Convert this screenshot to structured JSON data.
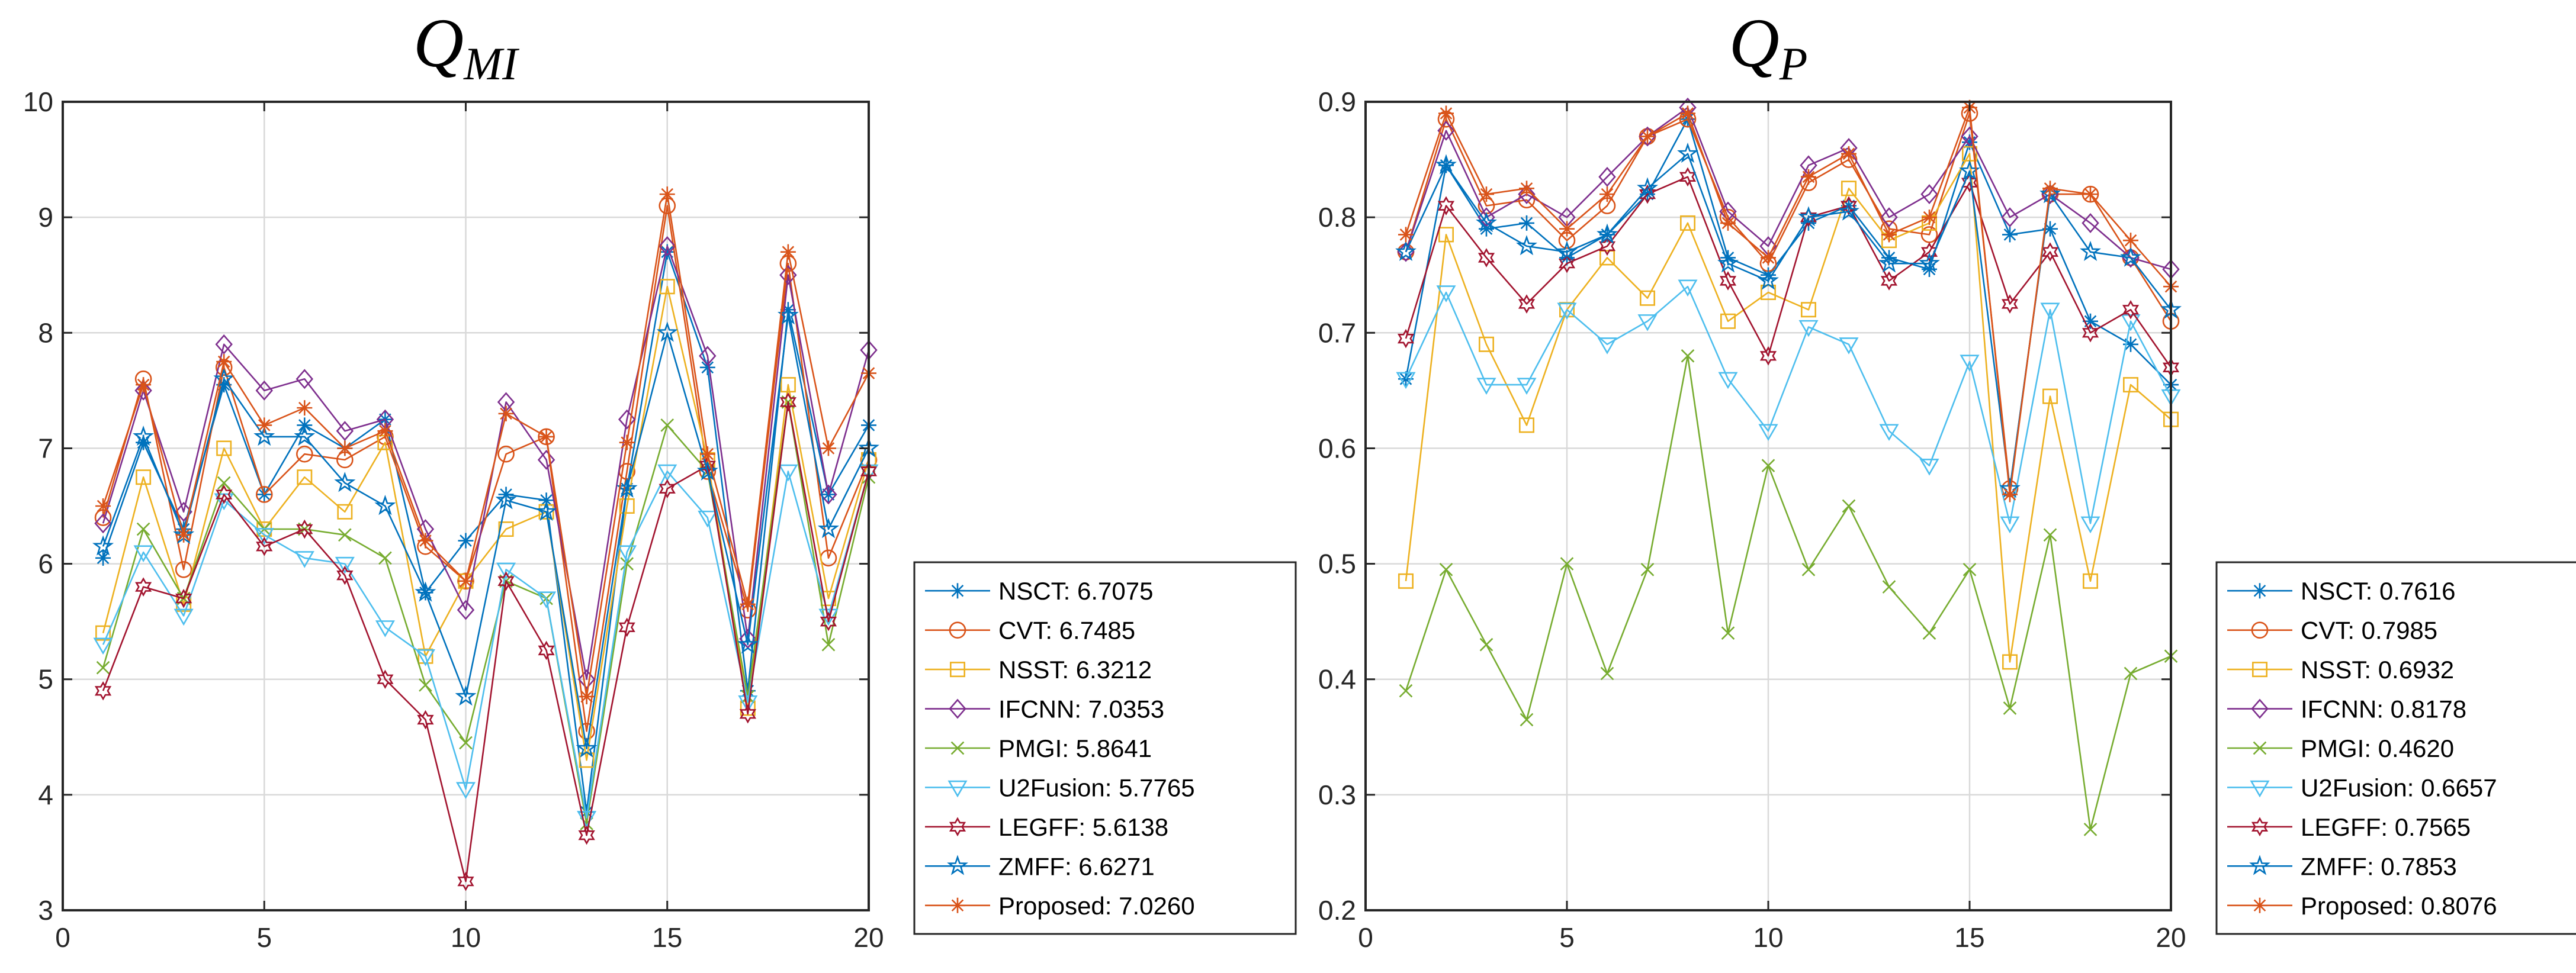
{
  "chart_data": [
    {
      "type": "line",
      "title": "Q",
      "title_subscript": "MI",
      "xlabel": "",
      "ylabel": "",
      "xlim": [
        0,
        20
      ],
      "ylim": [
        3,
        10
      ],
      "xticks": [
        0,
        5,
        10,
        15,
        20
      ],
      "yticks": [
        3,
        4,
        5,
        6,
        7,
        8,
        9,
        10
      ],
      "grid": true,
      "legend_position": "outside-right-bottom",
      "x": [
        1,
        2,
        3,
        4,
        5,
        6,
        7,
        8,
        9,
        10,
        11,
        12,
        13,
        14,
        15,
        16,
        17,
        18,
        19,
        20
      ],
      "series": [
        {
          "name": "NSCT",
          "legend": "NSCT: 6.7075",
          "color": "#0072BD",
          "marker": "asterisk",
          "values": [
            6.05,
            7.05,
            6.3,
            7.55,
            6.6,
            7.2,
            7.0,
            7.25,
            5.75,
            6.2,
            6.6,
            6.55,
            3.85,
            6.65,
            8.7,
            7.7,
            4.9,
            8.2,
            6.6,
            7.2
          ]
        },
        {
          "name": "CVT",
          "legend": "CVT: 6.7485",
          "color": "#D95319",
          "marker": "circle",
          "values": [
            6.4,
            7.6,
            5.95,
            7.7,
            6.6,
            6.95,
            6.9,
            7.1,
            6.15,
            5.85,
            6.95,
            7.1,
            4.55,
            6.8,
            9.1,
            6.8,
            5.6,
            8.6,
            6.05,
            6.9
          ]
        },
        {
          "name": "NSST",
          "legend": "NSST: 6.3212",
          "color": "#EDB120",
          "marker": "square",
          "values": [
            5.4,
            6.75,
            5.65,
            7.0,
            6.3,
            6.75,
            6.45,
            7.05,
            5.2,
            5.85,
            6.3,
            6.45,
            4.3,
            6.5,
            8.4,
            6.9,
            4.75,
            7.55,
            5.7,
            6.9
          ]
        },
        {
          "name": "IFCNN",
          "legend": "IFCNN: 7.0353",
          "color": "#7E2F8E",
          "marker": "diamond",
          "values": [
            6.35,
            7.5,
            6.45,
            7.9,
            7.5,
            7.6,
            7.15,
            7.25,
            6.3,
            5.6,
            7.4,
            6.9,
            5.0,
            7.25,
            8.75,
            7.8,
            5.35,
            8.5,
            6.6,
            7.85
          ]
        },
        {
          "name": "PMGI",
          "legend": "PMGI: 5.8641",
          "color": "#77AC30",
          "marker": "x",
          "values": [
            5.1,
            6.3,
            5.7,
            6.7,
            6.3,
            6.3,
            6.25,
            6.05,
            4.95,
            4.45,
            5.85,
            5.7,
            3.75,
            6.0,
            7.2,
            6.8,
            4.85,
            7.4,
            5.3,
            6.75
          ]
        },
        {
          "name": "U2Fusion",
          "legend": "U2Fusion: 5.7765",
          "color": "#4DBEEE",
          "marker": "triangle-down",
          "values": [
            5.3,
            6.1,
            5.55,
            6.55,
            6.25,
            6.05,
            6.0,
            5.45,
            5.2,
            4.05,
            5.95,
            5.7,
            3.8,
            6.1,
            6.8,
            6.4,
            4.8,
            6.8,
            5.55,
            6.8
          ]
        },
        {
          "name": "LEGFF",
          "legend": "LEGFF: 5.6138",
          "color": "#A2142F",
          "marker": "hexagram",
          "values": [
            4.9,
            5.8,
            5.7,
            6.6,
            6.15,
            6.3,
            5.9,
            5.0,
            4.65,
            3.25,
            5.85,
            5.25,
            3.65,
            5.45,
            6.65,
            6.85,
            4.7,
            7.4,
            5.5,
            6.8
          ]
        },
        {
          "name": "ZMFF",
          "legend": "ZMFF: 6.6271",
          "color": "#0072BD",
          "marker": "pentagram",
          "values": [
            6.15,
            7.1,
            6.25,
            7.6,
            7.1,
            7.1,
            6.7,
            6.5,
            5.75,
            4.85,
            6.55,
            6.45,
            4.4,
            6.65,
            8.0,
            6.8,
            5.3,
            8.15,
            6.3,
            7.0
          ]
        },
        {
          "name": "Proposed",
          "legend": "Proposed: 7.0260",
          "color": "#D95319",
          "marker": "asterisk",
          "values": [
            6.5,
            7.55,
            6.25,
            7.75,
            7.2,
            7.35,
            7.0,
            7.15,
            6.2,
            5.85,
            7.3,
            7.1,
            4.85,
            7.05,
            9.2,
            6.95,
            5.65,
            8.7,
            7.0,
            7.65
          ]
        }
      ]
    },
    {
      "type": "line",
      "title": "Q",
      "title_subscript": "P",
      "xlabel": "",
      "ylabel": "",
      "xlim": [
        0,
        20
      ],
      "ylim": [
        0.2,
        0.9
      ],
      "xticks": [
        0,
        5,
        10,
        15,
        20
      ],
      "yticks": [
        0.2,
        0.3,
        0.4,
        0.5,
        0.6,
        0.7,
        0.8,
        0.9
      ],
      "grid": true,
      "legend_position": "outside-right-bottom",
      "x": [
        1,
        2,
        3,
        4,
        5,
        6,
        7,
        8,
        9,
        10,
        11,
        12,
        13,
        14,
        15,
        16,
        17,
        18,
        19,
        20
      ],
      "series": [
        {
          "name": "NSCT",
          "legend": "NSCT: 0.7616",
          "color": "#0072BD",
          "marker": "asterisk",
          "values": [
            0.66,
            0.845,
            0.79,
            0.795,
            0.765,
            0.785,
            0.82,
            0.885,
            0.765,
            0.75,
            0.795,
            0.81,
            0.765,
            0.755,
            0.865,
            0.785,
            0.79,
            0.71,
            0.69,
            0.655
          ]
        },
        {
          "name": "CVT",
          "legend": "CVT: 0.7985",
          "color": "#D95319",
          "marker": "circle",
          "values": [
            0.77,
            0.885,
            0.81,
            0.815,
            0.78,
            0.81,
            0.87,
            0.885,
            0.8,
            0.76,
            0.83,
            0.85,
            0.79,
            0.785,
            0.89,
            0.565,
            0.82,
            0.82,
            0.765,
            0.71
          ]
        },
        {
          "name": "NSST",
          "legend": "NSST: 0.6932",
          "color": "#EDB120",
          "marker": "square",
          "values": [
            0.485,
            0.785,
            0.69,
            0.62,
            0.72,
            0.765,
            0.73,
            0.795,
            0.71,
            0.735,
            0.72,
            0.825,
            0.78,
            0.795,
            0.855,
            0.415,
            0.645,
            0.485,
            0.655,
            0.625
          ]
        },
        {
          "name": "IFCNN",
          "legend": "IFCNN: 0.8178",
          "color": "#7E2F8E",
          "marker": "diamond",
          "values": [
            0.77,
            0.875,
            0.8,
            0.82,
            0.8,
            0.835,
            0.87,
            0.895,
            0.805,
            0.775,
            0.845,
            0.86,
            0.8,
            0.82,
            0.87,
            0.8,
            0.82,
            0.795,
            0.765,
            0.755
          ]
        },
        {
          "name": "PMGI",
          "legend": "PMGI: 0.4620",
          "color": "#77AC30",
          "marker": "x",
          "values": [
            0.39,
            0.495,
            0.43,
            0.365,
            0.5,
            0.405,
            0.495,
            0.68,
            0.44,
            0.585,
            0.495,
            0.55,
            0.48,
            0.44,
            0.495,
            0.375,
            0.525,
            0.27,
            0.405,
            0.42
          ]
        },
        {
          "name": "U2Fusion",
          "legend": "U2Fusion: 0.6657",
          "color": "#4DBEEE",
          "marker": "triangle-down",
          "values": [
            0.66,
            0.735,
            0.655,
            0.655,
            0.72,
            0.69,
            0.71,
            0.74,
            0.66,
            0.615,
            0.705,
            0.69,
            0.615,
            0.585,
            0.675,
            0.535,
            0.72,
            0.535,
            0.71,
            0.645
          ]
        },
        {
          "name": "LEGFF",
          "legend": "LEGFF: 0.7565",
          "color": "#A2142F",
          "marker": "hexagram",
          "values": [
            0.695,
            0.81,
            0.765,
            0.725,
            0.76,
            0.775,
            0.82,
            0.835,
            0.745,
            0.68,
            0.8,
            0.81,
            0.745,
            0.77,
            0.83,
            0.725,
            0.77,
            0.7,
            0.72,
            0.67
          ]
        },
        {
          "name": "ZMFF",
          "legend": "ZMFF: 0.7853",
          "color": "#0072BD",
          "marker": "pentagram",
          "values": [
            0.77,
            0.845,
            0.795,
            0.775,
            0.77,
            0.785,
            0.825,
            0.855,
            0.76,
            0.745,
            0.8,
            0.805,
            0.76,
            0.76,
            0.84,
            0.565,
            0.82,
            0.77,
            0.765,
            0.72
          ]
        },
        {
          "name": "Proposed",
          "legend": "Proposed: 0.8076",
          "color": "#D95319",
          "marker": "asterisk",
          "values": [
            0.785,
            0.89,
            0.82,
            0.825,
            0.79,
            0.82,
            0.87,
            0.89,
            0.795,
            0.765,
            0.835,
            0.855,
            0.785,
            0.8,
            0.895,
            0.56,
            0.825,
            0.82,
            0.78,
            0.74
          ]
        }
      ]
    }
  ]
}
